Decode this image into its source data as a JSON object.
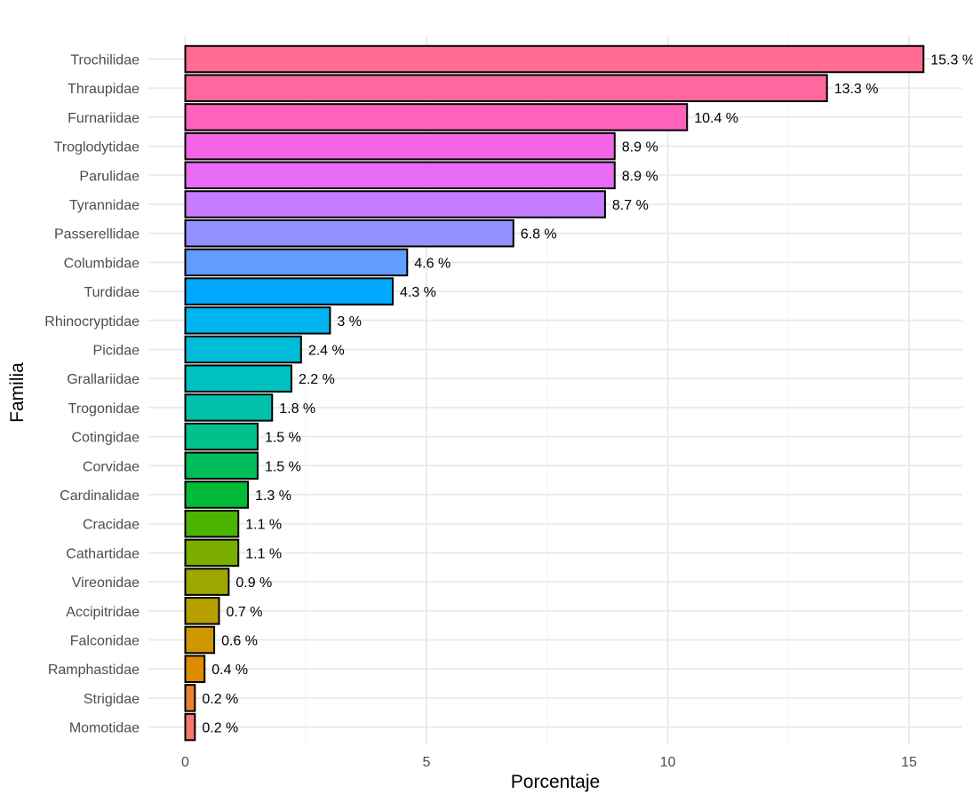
{
  "chart_data": {
    "type": "bar",
    "orientation": "horizontal",
    "xlabel": "Porcentaje",
    "ylabel": "Familia",
    "xlim": [
      0,
      16.2
    ],
    "xticks": [
      0,
      5,
      10,
      15
    ],
    "grid": true,
    "legend": "none",
    "categories": [
      "Trochilidae",
      "Thraupidae",
      "Furnariidae",
      "Troglodytidae",
      "Parulidae",
      "Tyrannidae",
      "Passerellidae",
      "Columbidae",
      "Turdidae",
      "Rhinocryptidae",
      "Picidae",
      "Grallariidae",
      "Trogonidae",
      "Cotingidae",
      "Corvidae",
      "Cardinalidae",
      "Cracidae",
      "Cathartidae",
      "Vireonidae",
      "Accipitridae",
      "Falconidae",
      "Ramphastidae",
      "Strigidae",
      "Momotidae"
    ],
    "values": [
      15.3,
      13.3,
      10.4,
      8.9,
      8.9,
      8.7,
      6.8,
      4.6,
      4.3,
      3,
      2.4,
      2.2,
      1.8,
      1.5,
      1.5,
      1.3,
      1.1,
      1.1,
      0.9,
      0.7,
      0.6,
      0.4,
      0.2,
      0.2
    ],
    "labels": [
      "15.3 %",
      "13.3 %",
      "10.4 %",
      "8.9 %",
      "8.9 %",
      "8.7 %",
      "6.8 %",
      "4.6 %",
      "4.3 %",
      "3 %",
      "2.4 %",
      "2.2 %",
      "1.8 %",
      "1.5 %",
      "1.5 %",
      "1.3 %",
      "1.1 %",
      "1.1 %",
      "0.9 %",
      "0.7 %",
      "0.6 %",
      "0.4 %",
      "0.2 %",
      "0.2 %"
    ],
    "colors": [
      "#FF6C91",
      "#FF689F",
      "#FF62BC",
      "#F265E7",
      "#E76BF3",
      "#C77CFF",
      "#9590FF",
      "#619CFF",
      "#00A9FF",
      "#00B4EF",
      "#00BCD8",
      "#00C0C0",
      "#00C1A9",
      "#00C08B",
      "#00BD5C",
      "#00BA38",
      "#4CB400",
      "#7CAE00",
      "#9DA700",
      "#B79F00",
      "#CE9700",
      "#DE8C00",
      "#EA8331",
      "#F8766D"
    ]
  }
}
